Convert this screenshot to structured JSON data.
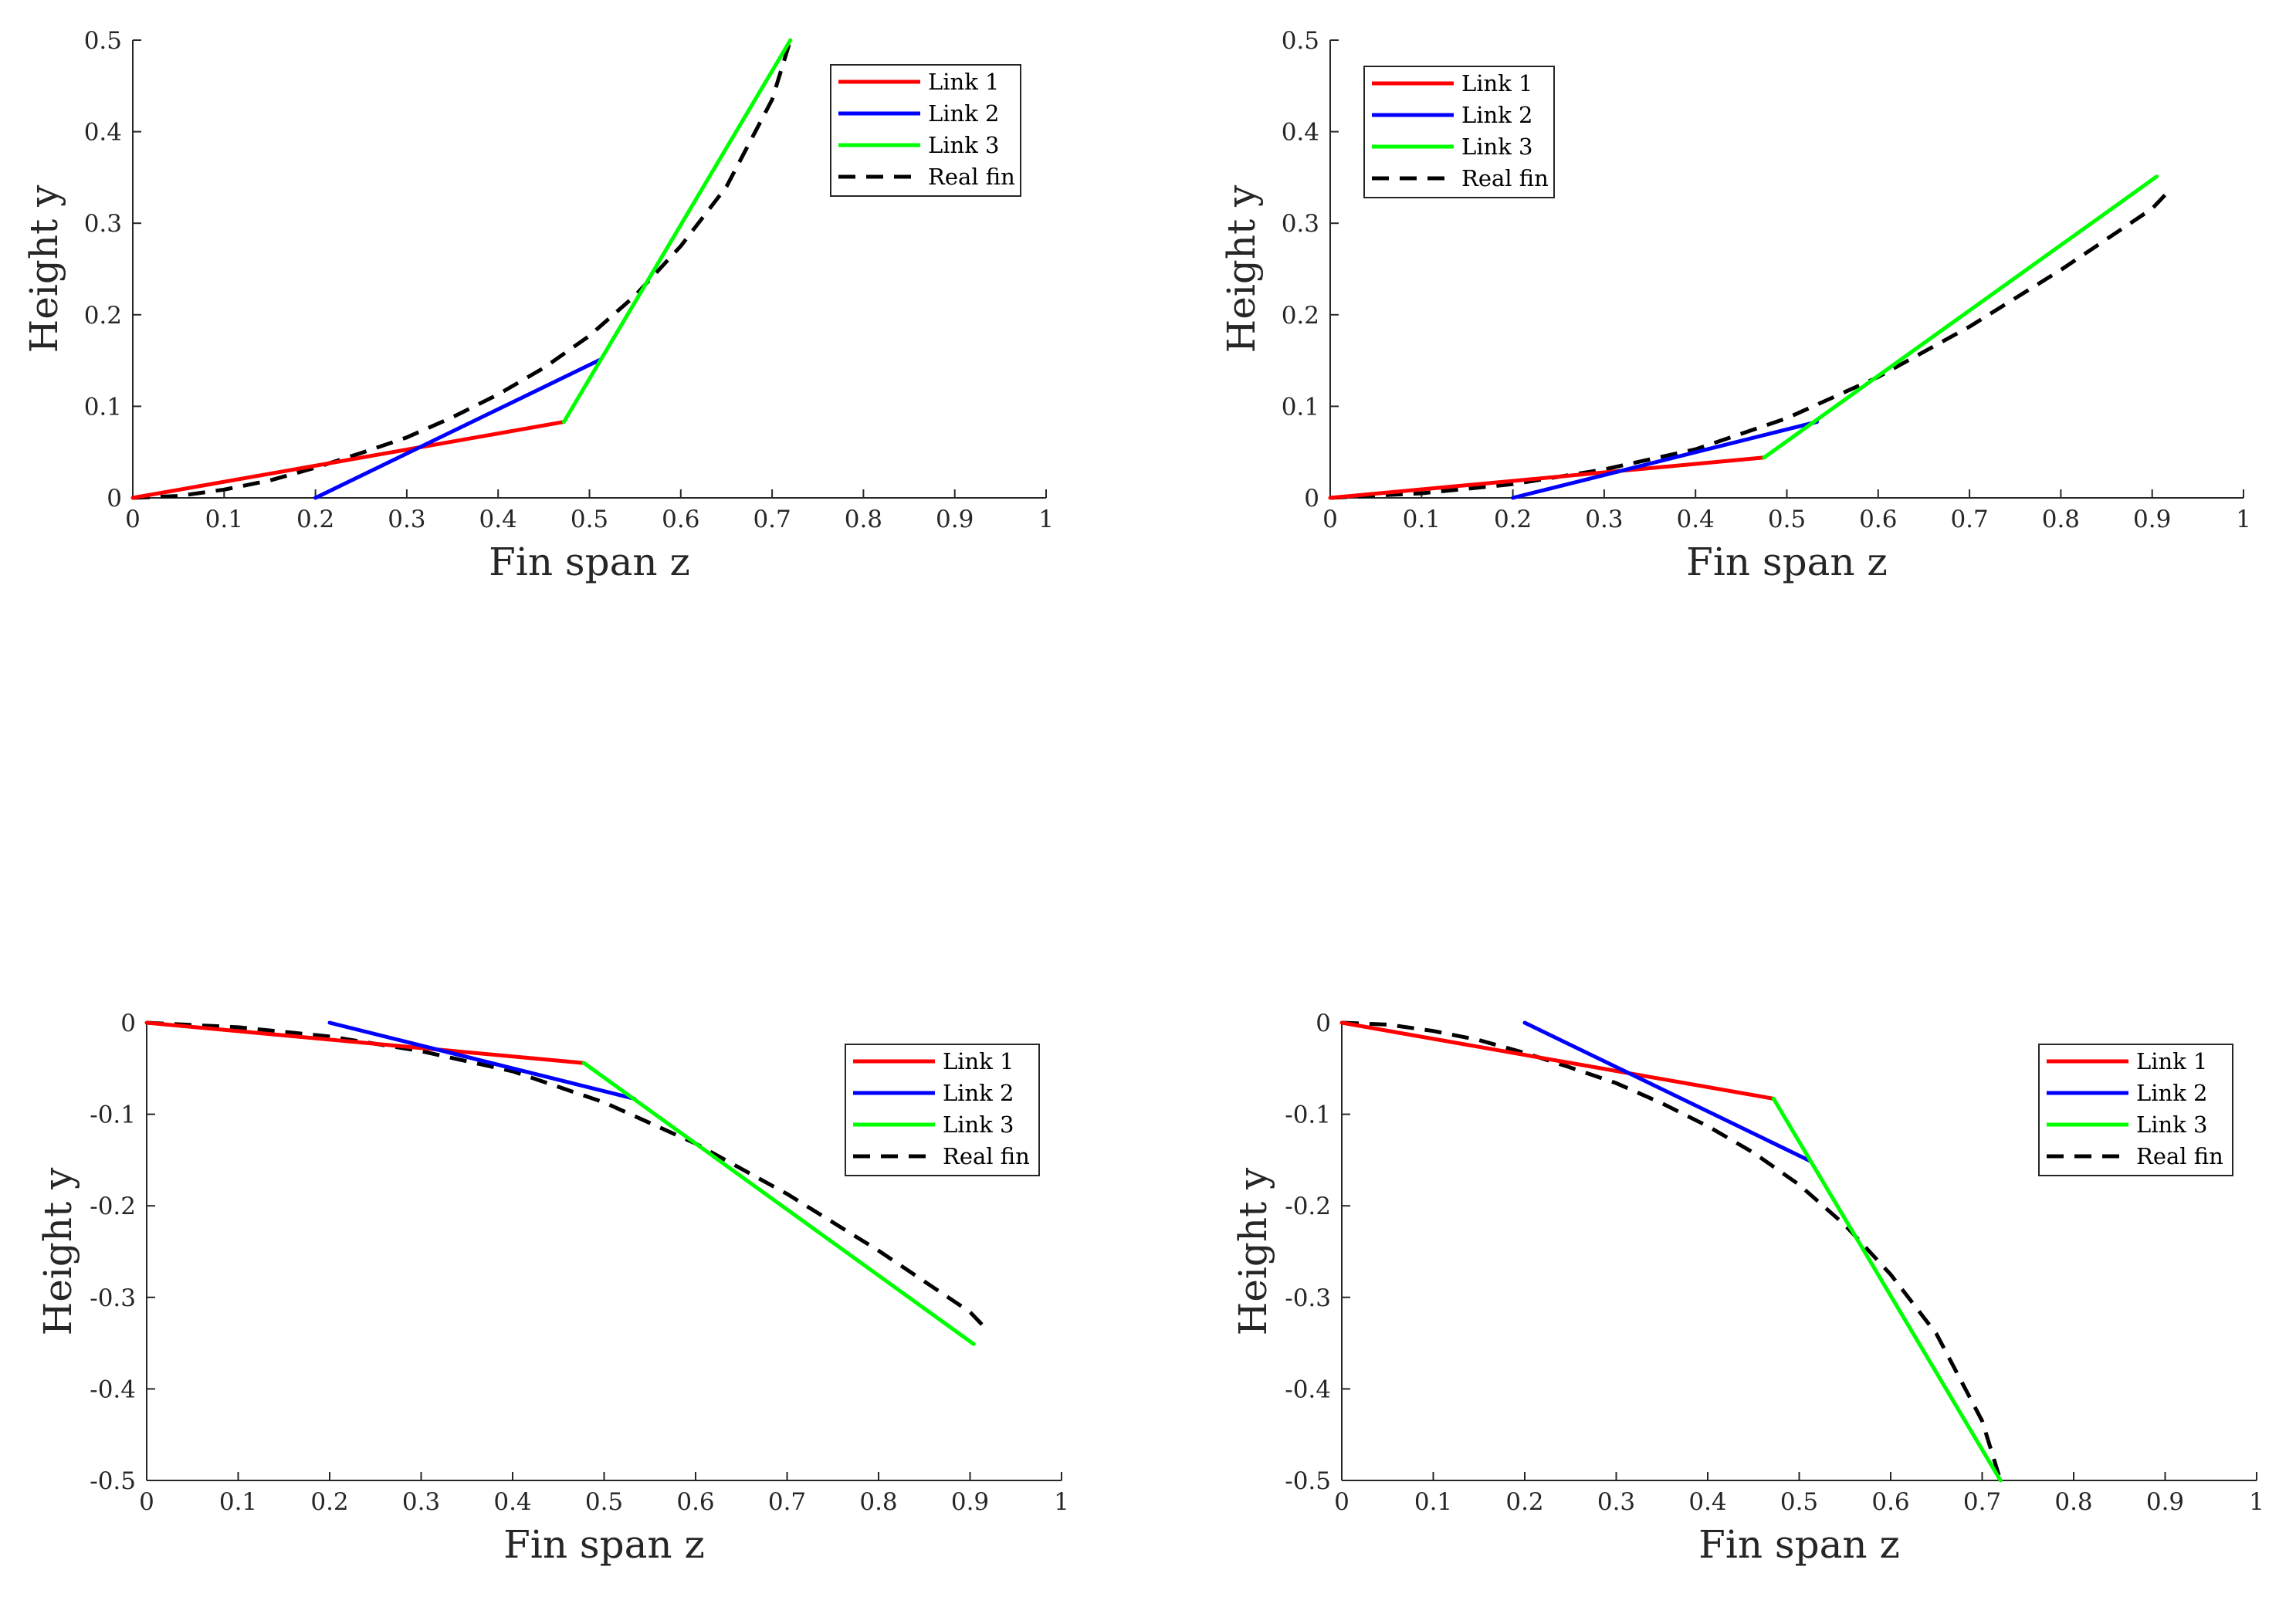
{
  "chart_data": [
    {
      "type": "line",
      "xlabel": "Fin span z",
      "ylabel": "Height y",
      "xlim": [
        0,
        1
      ],
      "ylim": [
        0,
        0.5
      ],
      "xticks": [
        0,
        0.1,
        0.2,
        0.3,
        0.4,
        0.5,
        0.6,
        0.7,
        0.8,
        0.9,
        1
      ],
      "yticks": [
        0,
        0.1,
        0.2,
        0.3,
        0.4,
        0.5
      ],
      "xtick_labels": [
        "0",
        "0.1",
        "0.2",
        "0.3",
        "0.4",
        "0.5",
        "0.6",
        "0.7",
        "0.8",
        "0.9",
        "1"
      ],
      "ytick_labels": [
        "0",
        "0.1",
        "0.2",
        "0.3",
        "0.4",
        "0.5"
      ],
      "legend_position": "top-right",
      "series": [
        {
          "name": "Link 1",
          "color": "#ff0000",
          "style": "solid",
          "x": [
            0,
            0.472
          ],
          "y": [
            0,
            0.083
          ]
        },
        {
          "name": "Link 2",
          "color": "#0000ff",
          "style": "solid",
          "x": [
            0.2,
            0.512
          ],
          "y": [
            0,
            0.151
          ]
        },
        {
          "name": "Link 3",
          "color": "#00ff00",
          "style": "solid",
          "x": [
            0.472,
            0.72
          ],
          "y": [
            0.083,
            0.5
          ]
        },
        {
          "name": "Real fin",
          "color": "#000000",
          "style": "dashed",
          "x": [
            0,
            0.05,
            0.1,
            0.15,
            0.2,
            0.25,
            0.3,
            0.35,
            0.4,
            0.45,
            0.5,
            0.55,
            0.6,
            0.65,
            0.7,
            0.72
          ],
          "y": [
            0,
            0.002,
            0.009,
            0.019,
            0.033,
            0.049,
            0.066,
            0.088,
            0.113,
            0.142,
            0.177,
            0.221,
            0.275,
            0.34,
            0.435,
            0.5
          ]
        }
      ]
    },
    {
      "type": "line",
      "xlabel": "Fin span z",
      "ylabel": "Height y",
      "xlim": [
        0,
        1
      ],
      "ylim": [
        0,
        0.5
      ],
      "xticks": [
        0,
        0.1,
        0.2,
        0.3,
        0.4,
        0.5,
        0.6,
        0.7,
        0.8,
        0.9,
        1
      ],
      "yticks": [
        0,
        0.1,
        0.2,
        0.3,
        0.4,
        0.5
      ],
      "xtick_labels": [
        "0",
        "0.1",
        "0.2",
        "0.3",
        "0.4",
        "0.5",
        "0.6",
        "0.7",
        "0.8",
        "0.9",
        "1"
      ],
      "ytick_labels": [
        "0",
        "0.1",
        "0.2",
        "0.3",
        "0.4",
        "0.5"
      ],
      "legend_position": "top-left",
      "series": [
        {
          "name": "Link 1",
          "color": "#ff0000",
          "style": "solid",
          "x": [
            0,
            0.475
          ],
          "y": [
            0,
            0.044
          ]
        },
        {
          "name": "Link 2",
          "color": "#0000ff",
          "style": "solid",
          "x": [
            0.2,
            0.533
          ],
          "y": [
            0,
            0.083
          ]
        },
        {
          "name": "Link 3",
          "color": "#00ff00",
          "style": "solid",
          "x": [
            0.475,
            0.905
          ],
          "y": [
            0.044,
            0.351
          ]
        },
        {
          "name": "Real fin",
          "color": "#000000",
          "style": "dashed",
          "x": [
            0,
            0.1,
            0.2,
            0.3,
            0.4,
            0.5,
            0.6,
            0.7,
            0.8,
            0.9,
            0.92
          ],
          "y": [
            0,
            0.005,
            0.015,
            0.031,
            0.053,
            0.087,
            0.132,
            0.187,
            0.249,
            0.316,
            0.337
          ]
        }
      ]
    },
    {
      "type": "line",
      "xlabel": "Fin span z",
      "ylabel": "Height y",
      "xlim": [
        0,
        1
      ],
      "ylim": [
        -0.5,
        0
      ],
      "xticks": [
        0,
        0.1,
        0.2,
        0.3,
        0.4,
        0.5,
        0.6,
        0.7,
        0.8,
        0.9,
        1
      ],
      "yticks": [
        0,
        -0.1,
        -0.2,
        -0.3,
        -0.4,
        -0.5
      ],
      "xtick_labels": [
        "0",
        "0.1",
        "0.2",
        "0.3",
        "0.4",
        "0.5",
        "0.6",
        "0.7",
        "0.8",
        "0.9",
        "1"
      ],
      "ytick_labels": [
        "0",
        "-0.1",
        "-0.2",
        "-0.3",
        "-0.4",
        "-0.5"
      ],
      "legend_position": "top-right",
      "series": [
        {
          "name": "Link 1",
          "color": "#ff0000",
          "style": "solid",
          "x": [
            0,
            0.478
          ],
          "y": [
            0,
            -0.044
          ]
        },
        {
          "name": "Link 2",
          "color": "#0000ff",
          "style": "solid",
          "x": [
            0.2,
            0.533
          ],
          "y": [
            0,
            -0.083
          ]
        },
        {
          "name": "Link 3",
          "color": "#00ff00",
          "style": "solid",
          "x": [
            0.478,
            0.904
          ],
          "y": [
            -0.044,
            -0.351
          ]
        },
        {
          "name": "Real fin",
          "color": "#000000",
          "style": "dashed",
          "x": [
            0,
            0.1,
            0.2,
            0.3,
            0.4,
            0.5,
            0.6,
            0.7,
            0.8,
            0.9,
            0.92
          ],
          "y": [
            0,
            -0.005,
            -0.015,
            -0.031,
            -0.053,
            -0.087,
            -0.132,
            -0.187,
            -0.249,
            -0.316,
            -0.337
          ]
        }
      ]
    },
    {
      "type": "line",
      "xlabel": "Fin span z",
      "ylabel": "Height y",
      "xlim": [
        0,
        1
      ],
      "ylim": [
        -0.5,
        0
      ],
      "xticks": [
        0,
        0.1,
        0.2,
        0.3,
        0.4,
        0.5,
        0.6,
        0.7,
        0.8,
        0.9,
        1
      ],
      "yticks": [
        0,
        -0.1,
        -0.2,
        -0.3,
        -0.4,
        -0.5
      ],
      "xtick_labels": [
        "0",
        "0.1",
        "0.2",
        "0.3",
        "0.4",
        "0.5",
        "0.6",
        "0.7",
        "0.8",
        "0.9",
        "1"
      ],
      "ytick_labels": [
        "0",
        "-0.1",
        "-0.2",
        "-0.3",
        "-0.4",
        "-0.5"
      ],
      "legend_position": "top-right",
      "series": [
        {
          "name": "Link 1",
          "color": "#ff0000",
          "style": "solid",
          "x": [
            0,
            0.472
          ],
          "y": [
            0,
            -0.083
          ]
        },
        {
          "name": "Link 2",
          "color": "#0000ff",
          "style": "solid",
          "x": [
            0.2,
            0.512
          ],
          "y": [
            0,
            -0.151
          ]
        },
        {
          "name": "Link 3",
          "color": "#00ff00",
          "style": "solid",
          "x": [
            0.472,
            0.72
          ],
          "y": [
            -0.083,
            -0.5
          ]
        },
        {
          "name": "Real fin",
          "color": "#000000",
          "style": "dashed",
          "x": [
            0,
            0.05,
            0.1,
            0.15,
            0.2,
            0.25,
            0.3,
            0.35,
            0.4,
            0.45,
            0.5,
            0.55,
            0.6,
            0.65,
            0.7,
            0.72
          ],
          "y": [
            0,
            -0.002,
            -0.009,
            -0.019,
            -0.033,
            -0.049,
            -0.066,
            -0.088,
            -0.113,
            -0.142,
            -0.177,
            -0.221,
            -0.275,
            -0.34,
            -0.435,
            -0.5
          ]
        }
      ]
    }
  ]
}
